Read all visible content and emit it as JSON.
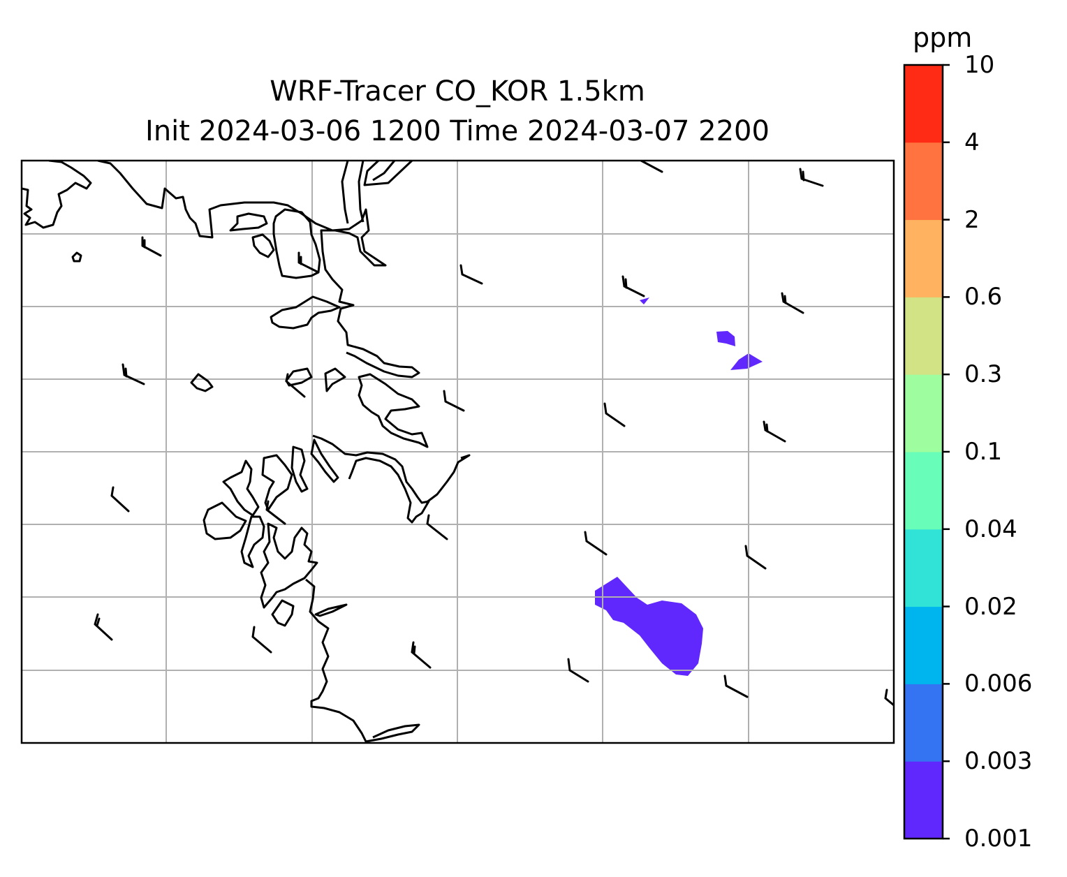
{
  "figure": {
    "title_line1": "WRF-Tracer CO_KOR 1.5km",
    "title_line2": "Init 2024-03-06 1200 Time 2024-03-07 2200"
  },
  "colorbar": {
    "unit": "ppm",
    "levels": [
      "0.001",
      "0.003",
      "0.006",
      "0.02",
      "0.04",
      "0.1",
      "0.3",
      "0.6",
      "2",
      "4",
      "10"
    ],
    "colors": [
      "#6128fd",
      "#3474f3",
      "#00b5ee",
      "#31e2d6",
      "#68fdb8",
      "#9dfd9f",
      "#d2e386",
      "#ffb25f",
      "#ff7340",
      "#ff2b14"
    ]
  },
  "map": {
    "gridlines": true,
    "features": [
      "coastline-icon",
      "wind-barb-icon",
      "tracer-contour-icon"
    ],
    "tracer_regions_level": "0.001"
  }
}
